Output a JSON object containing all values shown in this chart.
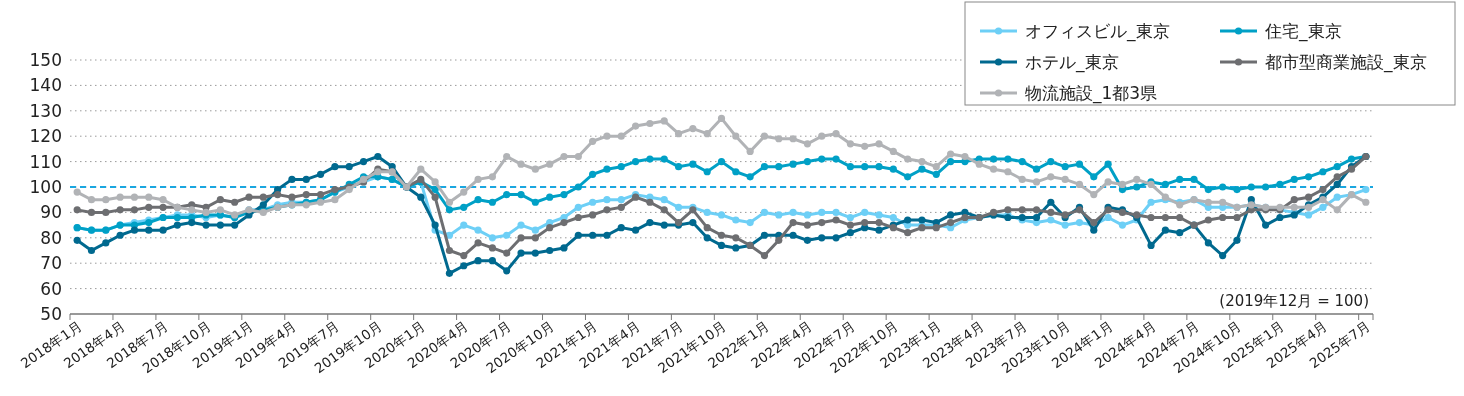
{
  "chart_data": {
    "type": "line",
    "categories": [
      "2018年1月",
      null,
      null,
      "2018年4月",
      null,
      null,
      "2018年7月",
      null,
      null,
      "2018年10月",
      null,
      null,
      "2019年1月",
      null,
      null,
      "2019年4月",
      null,
      null,
      "2019年7月",
      null,
      null,
      "2019年10月",
      null,
      null,
      "2020年1月",
      null,
      null,
      "2020年4月",
      null,
      null,
      "2020年7月",
      null,
      null,
      "2020年10月",
      null,
      null,
      "2021年1月",
      null,
      null,
      "2021年4月",
      null,
      null,
      "2021年7月",
      null,
      null,
      "2021年10月",
      null,
      null,
      "2022年1月",
      null,
      null,
      "2022年4月",
      null,
      null,
      "2022年7月",
      null,
      null,
      "2022年10月",
      null,
      null,
      "2023年1月",
      null,
      null,
      "2023年4月",
      null,
      null,
      "2023年7月",
      null,
      null,
      "2023年10月",
      null,
      null,
      "2024年1月",
      null,
      null,
      "2024年4月",
      null,
      null,
      "2024年7月",
      null,
      null,
      "2024年10月",
      null,
      null,
      "2025年1月",
      null,
      null,
      "2025年4月",
      null,
      null,
      "2025年7月"
    ],
    "series": [
      {
        "name": "オフィスビル_東京",
        "color": "#6dcff6",
        "values": [
          84,
          83,
          83,
          85,
          86,
          87,
          88,
          89,
          89,
          88,
          89,
          88,
          91,
          91,
          93,
          94,
          94,
          95,
          98,
          100,
          102,
          104,
          103,
          100,
          102,
          83,
          81,
          85,
          83,
          80,
          81,
          85,
          83,
          86,
          88,
          92,
          94,
          95,
          95,
          97,
          96,
          95,
          92,
          92,
          90,
          89,
          87,
          86,
          90,
          89,
          90,
          89,
          90,
          90,
          88,
          90,
          89,
          88,
          85,
          85,
          85,
          84,
          87,
          88,
          89,
          89,
          87,
          86,
          87,
          85,
          86,
          85,
          88,
          85,
          87,
          94,
          95,
          94,
          95,
          92,
          92,
          92,
          93,
          92,
          91,
          90,
          89,
          92,
          96,
          97,
          99
        ]
      },
      {
        "name": "住宅_東京",
        "color": "#00a0c6",
        "values": [
          84,
          83,
          83,
          85,
          85,
          86,
          88,
          88,
          88,
          89,
          89,
          88,
          90,
          91,
          92,
          93,
          94,
          95,
          98,
          101,
          104,
          104,
          103,
          100,
          102,
          99,
          91,
          92,
          95,
          94,
          97,
          97,
          94,
          96,
          97,
          100,
          105,
          107,
          108,
          110,
          111,
          111,
          108,
          109,
          106,
          110,
          106,
          104,
          108,
          108,
          109,
          110,
          111,
          111,
          108,
          108,
          108,
          107,
          104,
          107,
          105,
          110,
          110,
          111,
          111,
          111,
          110,
          107,
          110,
          108,
          109,
          104,
          109,
          99,
          100,
          102,
          101,
          103,
          103,
          99,
          100,
          99,
          100,
          100,
          101,
          103,
          104,
          106,
          108,
          111,
          112
        ]
      },
      {
        "name": "ホテル_東京",
        "color": "#00698f",
        "values": [
          79,
          75,
          78,
          81,
          83,
          83,
          83,
          85,
          86,
          85,
          85,
          85,
          89,
          93,
          99,
          103,
          103,
          105,
          108,
          108,
          110,
          112,
          108,
          100,
          96,
          85,
          66,
          69,
          71,
          71,
          67,
          74,
          74,
          75,
          76,
          81,
          81,
          81,
          84,
          83,
          86,
          85,
          85,
          86,
          80,
          77,
          76,
          77,
          81,
          81,
          81,
          79,
          80,
          80,
          82,
          84,
          83,
          85,
          87,
          87,
          86,
          89,
          90,
          88,
          89,
          88,
          88,
          88,
          94,
          88,
          92,
          83,
          92,
          91,
          88,
          77,
          83,
          82,
          85,
          78,
          73,
          79,
          95,
          85,
          88,
          89,
          93,
          96,
          101,
          108,
          112
        ]
      },
      {
        "name": "都市型商業施設_東京",
        "color": "#6d6e71",
        "values": [
          91,
          90,
          90,
          91,
          91,
          92,
          92,
          92,
          93,
          92,
          95,
          94,
          96,
          96,
          97,
          96,
          97,
          97,
          99,
          100,
          102,
          107,
          106,
          100,
          103,
          96,
          75,
          73,
          78,
          76,
          74,
          80,
          80,
          84,
          86,
          88,
          89,
          91,
          92,
          96,
          94,
          91,
          86,
          91,
          84,
          81,
          80,
          77,
          73,
          79,
          86,
          85,
          86,
          87,
          85,
          86,
          86,
          84,
          82,
          84,
          84,
          86,
          88,
          88,
          90,
          91,
          91,
          91,
          90,
          89,
          91,
          86,
          91,
          90,
          89,
          88,
          88,
          88,
          85,
          87,
          88,
          88,
          91,
          91,
          91,
          95,
          96,
          99,
          104,
          107,
          112
        ]
      },
      {
        "name": "物流施設_1都3県",
        "color": "#b1b3b6",
        "values": [
          98,
          95,
          95,
          96,
          96,
          96,
          95,
          92,
          91,
          90,
          91,
          89,
          91,
          90,
          92,
          93,
          93,
          94,
          95,
          99,
          103,
          106,
          106,
          100,
          107,
          102,
          94,
          98,
          103,
          104,
          112,
          109,
          107,
          109,
          112,
          112,
          118,
          120,
          120,
          124,
          125,
          126,
          121,
          123,
          121,
          127,
          120,
          114,
          120,
          119,
          119,
          117,
          120,
          121,
          117,
          116,
          117,
          114,
          111,
          110,
          108,
          113,
          112,
          109,
          107,
          106,
          103,
          102,
          104,
          103,
          101,
          97,
          102,
          101,
          103,
          101,
          96,
          93,
          95,
          94,
          94,
          92,
          93,
          92,
          92,
          92,
          92,
          95,
          91,
          97,
          94
        ]
      }
    ],
    "ylim": [
      50,
      150
    ],
    "yticks": [
      50,
      60,
      70,
      80,
      90,
      100,
      110,
      120,
      130,
      140,
      150
    ],
    "grid": "y",
    "legend": "top right",
    "marker": "circle",
    "line_style": "solid",
    "ref_lines": [
      {
        "axis": "y",
        "value": 100,
        "color": "#1aa7e0",
        "line_style": "dashed"
      }
    ],
    "annotations": [
      "(2019年12月 = 100)"
    ]
  }
}
